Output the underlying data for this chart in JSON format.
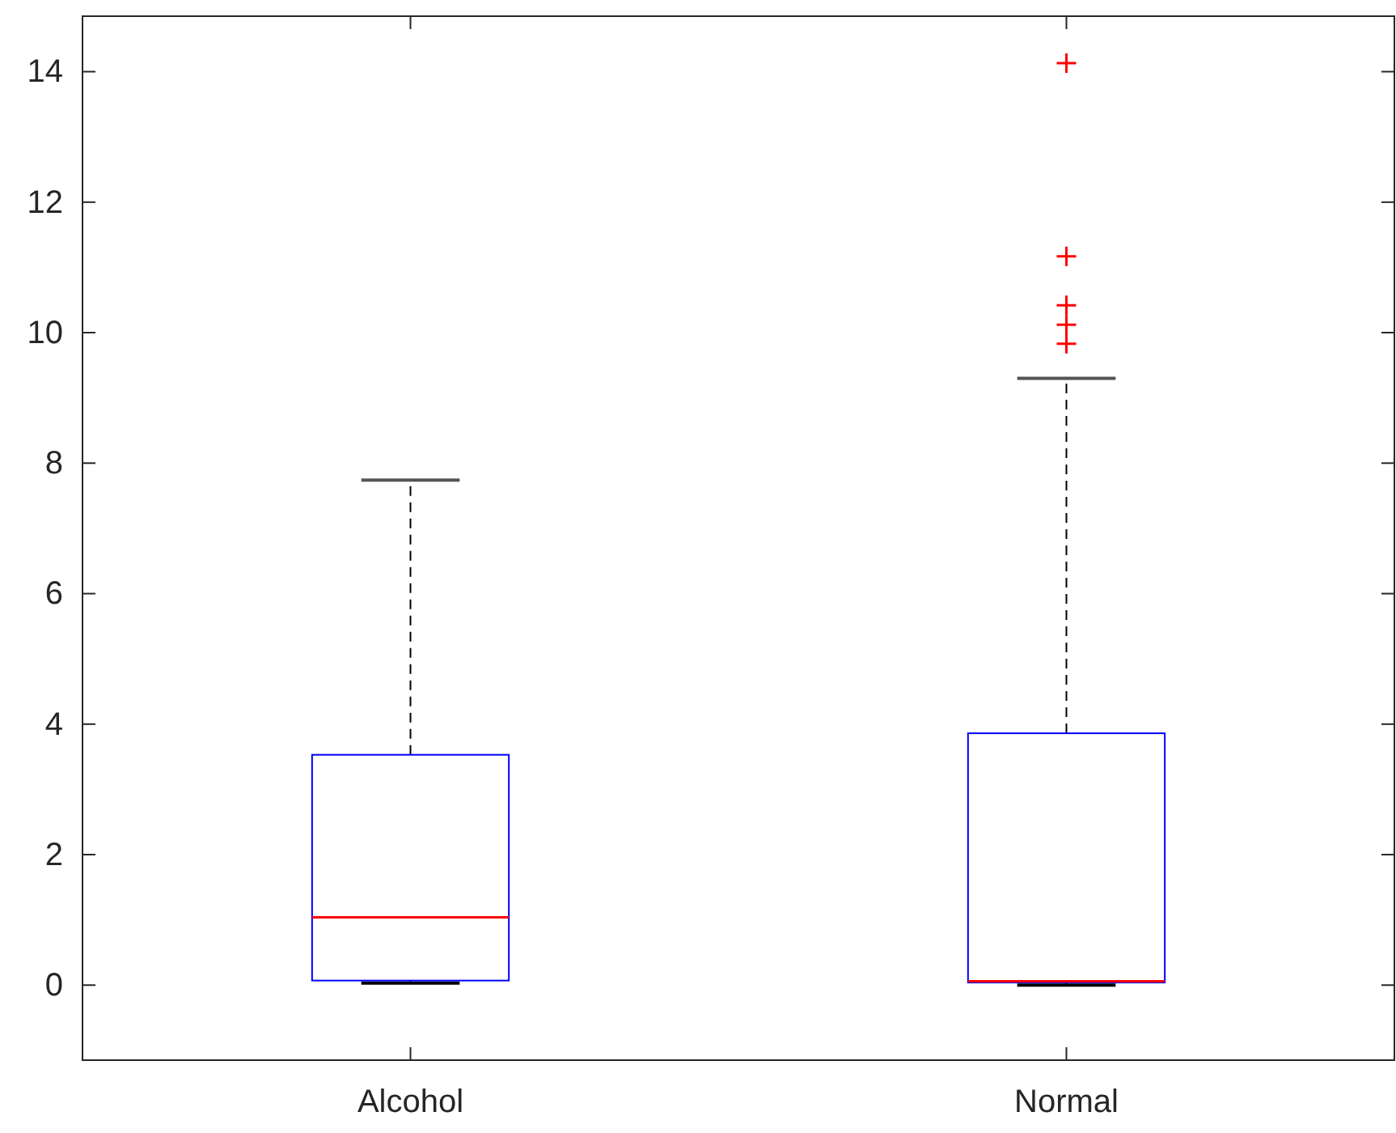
{
  "chart_data": {
    "type": "box",
    "categories": [
      "Alcohol",
      "Normal"
    ],
    "boxes": [
      {
        "low": 0.03,
        "q1": 0.07,
        "median": 1.04,
        "q3": 3.53,
        "high": 7.74
      },
      {
        "low": 0.0,
        "q1": 0.04,
        "median": 0.06,
        "q3": 3.86,
        "high": 9.3,
        "outliers": [
          9.83,
          10.12,
          10.42,
          11.17,
          14.13
        ]
      }
    ],
    "ylim": [
      -1.15,
      14.85
    ],
    "yticks": [
      0,
      2,
      4,
      6,
      8,
      10,
      12,
      14
    ],
    "grid": false
  }
}
